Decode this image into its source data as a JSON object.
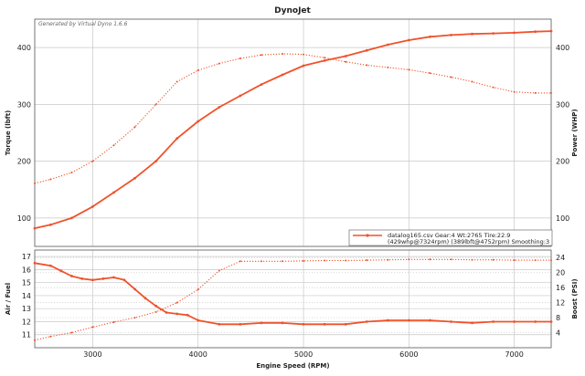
{
  "title": "DynoJet",
  "watermark": "Generated by Virtual Dyno 1.6.6",
  "legend": {
    "line1": "datalog165.csv Gear:4 Wt:2765 Tire:22.9",
    "line2": "(429whp@7324rpm) (389lbft@4752rpm) Smoothing:3"
  },
  "colors": {
    "line": "#f0522a",
    "grid": "#c8c8c8"
  },
  "chart_data": [
    {
      "type": "line",
      "panel": "top",
      "xlabel": "",
      "ylabel_left": "Torque (lbft)",
      "ylabel_right": "Power (WHP)",
      "xlim": [
        2450,
        7350
      ],
      "ylim": [
        50,
        450
      ],
      "x_ticks": [
        3000,
        4000,
        5000,
        6000,
        7000
      ],
      "y_ticks_left": [
        100,
        200,
        300,
        400
      ],
      "y_ticks_right": [
        100,
        200,
        300,
        400
      ],
      "grid": true,
      "series": [
        {
          "style": "solid",
          "x": [
            2450,
            2600,
            2800,
            3000,
            3200,
            3400,
            3600,
            3800,
            4000,
            4200,
            4400,
            4600,
            4800,
            5000,
            5200,
            5400,
            5600,
            5800,
            6000,
            6200,
            6400,
            6600,
            6800,
            7000,
            7200,
            7350
          ],
          "values": [
            82,
            88,
            100,
            120,
            145,
            170,
            200,
            240,
            270,
            295,
            315,
            335,
            352,
            368,
            377,
            385,
            395,
            405,
            413,
            419,
            422,
            424,
            425,
            426,
            428,
            429
          ]
        },
        {
          "style": "dotted",
          "x": [
            2450,
            2600,
            2800,
            3000,
            3200,
            3400,
            3600,
            3800,
            4000,
            4200,
            4400,
            4600,
            4800,
            5000,
            5200,
            5400,
            5600,
            5800,
            6000,
            6200,
            6400,
            6600,
            6800,
            7000,
            7200,
            7350
          ],
          "values": [
            161,
            168,
            180,
            200,
            228,
            260,
            300,
            340,
            360,
            372,
            381,
            387,
            389,
            388,
            382,
            375,
            369,
            365,
            361,
            355,
            348,
            340,
            330,
            322,
            320,
            320
          ]
        }
      ]
    },
    {
      "type": "line",
      "panel": "bottom",
      "xlabel": "Engine Speed (RPM)",
      "ylabel_left": "Air / Fuel",
      "ylabel_right": "Boost (PSI)",
      "xlim": [
        2450,
        7350
      ],
      "ylim_left": [
        10,
        17.5
      ],
      "ylim_right": [
        0,
        26
      ],
      "x_ticks": [
        3000,
        4000,
        5000,
        6000,
        7000
      ],
      "y_ticks_left": [
        11,
        12,
        13,
        14,
        15,
        16,
        17
      ],
      "y_ticks_right": [
        4,
        8,
        12,
        16,
        20,
        24
      ],
      "grid": true,
      "series": [
        {
          "style": "solid",
          "axis": "left",
          "x": [
            2450,
            2600,
            2700,
            2800,
            2900,
            3000,
            3100,
            3200,
            3300,
            3400,
            3500,
            3600,
            3700,
            3800,
            3900,
            4000,
            4200,
            4400,
            4600,
            4800,
            5000,
            5200,
            5400,
            5600,
            5800,
            6000,
            6200,
            6400,
            6600,
            6800,
            7000,
            7200,
            7350
          ],
          "values": [
            16.5,
            16.3,
            15.9,
            15.5,
            15.3,
            15.2,
            15.3,
            15.4,
            15.2,
            14.5,
            13.8,
            13.2,
            12.7,
            12.6,
            12.5,
            12.1,
            11.8,
            11.8,
            11.9,
            11.9,
            11.8,
            11.8,
            11.8,
            12.0,
            12.1,
            12.1,
            12.1,
            12.0,
            11.9,
            12.0,
            12.0,
            12.0,
            12.0
          ]
        },
        {
          "style": "dotted",
          "axis": "right",
          "x": [
            2450,
            2600,
            2800,
            3000,
            3200,
            3400,
            3600,
            3800,
            4000,
            4200,
            4400,
            4600,
            4800,
            5000,
            5200,
            5400,
            5600,
            5800,
            6000,
            6200,
            6400,
            6600,
            6800,
            7000,
            7200,
            7350
          ],
          "values": [
            2.0,
            3.0,
            4.0,
            5.5,
            6.8,
            8.0,
            9.5,
            12.0,
            15.5,
            20.5,
            23.0,
            23.0,
            23.0,
            23.1,
            23.2,
            23.2,
            23.3,
            23.4,
            23.5,
            23.5,
            23.5,
            23.4,
            23.4,
            23.3,
            23.3,
            23.3
          ]
        }
      ]
    }
  ]
}
